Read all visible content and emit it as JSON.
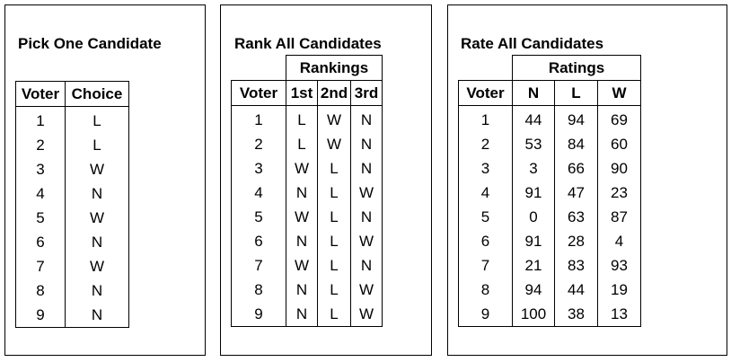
{
  "pick": {
    "title": "Pick One Candidate",
    "headers": [
      "Voter",
      "Choice"
    ],
    "rows": [
      [
        "1",
        "L"
      ],
      [
        "2",
        "L"
      ],
      [
        "3",
        "W"
      ],
      [
        "4",
        "N"
      ],
      [
        "5",
        "W"
      ],
      [
        "6",
        "N"
      ],
      [
        "7",
        "W"
      ],
      [
        "8",
        "N"
      ],
      [
        "9",
        "N"
      ]
    ]
  },
  "rank": {
    "title": "Rank All Candidates",
    "group_header": "Rankings",
    "headers": [
      "Voter",
      "1st",
      "2nd",
      "3rd"
    ],
    "rows": [
      [
        "1",
        "L",
        "W",
        "N"
      ],
      [
        "2",
        "L",
        "W",
        "N"
      ],
      [
        "3",
        "W",
        "L",
        "N"
      ],
      [
        "4",
        "N",
        "L",
        "W"
      ],
      [
        "5",
        "W",
        "L",
        "N"
      ],
      [
        "6",
        "N",
        "L",
        "W"
      ],
      [
        "7",
        "W",
        "L",
        "N"
      ],
      [
        "8",
        "N",
        "L",
        "W"
      ],
      [
        "9",
        "N",
        "L",
        "W"
      ]
    ]
  },
  "rate": {
    "title": "Rate All Candidates",
    "group_header": "Ratings",
    "headers": [
      "Voter",
      "N",
      "L",
      "W"
    ],
    "rows": [
      [
        "1",
        "44",
        "94",
        "69"
      ],
      [
        "2",
        "53",
        "84",
        "60"
      ],
      [
        "3",
        "3",
        "66",
        "90"
      ],
      [
        "4",
        "91",
        "47",
        "23"
      ],
      [
        "5",
        "0",
        "63",
        "87"
      ],
      [
        "6",
        "91",
        "28",
        "4"
      ],
      [
        "7",
        "21",
        "83",
        "93"
      ],
      [
        "8",
        "94",
        "44",
        "19"
      ],
      [
        "9",
        "100",
        "38",
        "13"
      ]
    ]
  }
}
